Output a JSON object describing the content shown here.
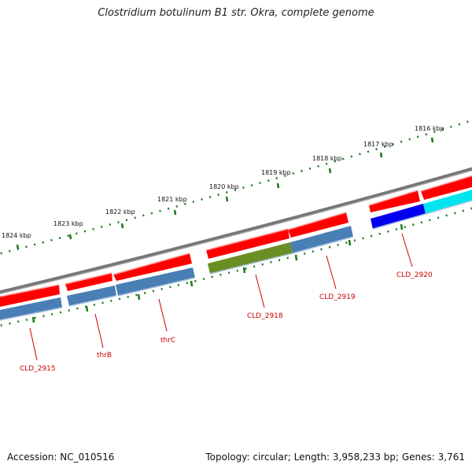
{
  "title": "Clostridium botulinum B1 str. Okra, complete genome",
  "footer": {
    "accession": "Accession: NC_010516",
    "topology": "Topology: circular; Length: 3,958,233 bp; Genes: 3,761"
  },
  "colors": {
    "backbone": "#7d7d7d",
    "ticks": "#1a7a1a",
    "cds_strand": "#ff0000",
    "gene_default": "#4a7fb5",
    "gene_olive": "#6b8e23",
    "gene_blue": "#0000ee",
    "gene_cyan": "#00e5ee",
    "label": "#cc0000"
  },
  "scale_labels": [
    "1824 kbp",
    "1823 kbp",
    "1822 kbp",
    "1821 kbp",
    "1820 kbp",
    "1819 kbp",
    "1818 kbp",
    "1817 kbp",
    "1816 kbp"
  ],
  "gene_labels": [
    "CLD_2915",
    "thrB",
    "thrC",
    "CLD_2918",
    "CLD_2919",
    "CLD_2920"
  ]
}
